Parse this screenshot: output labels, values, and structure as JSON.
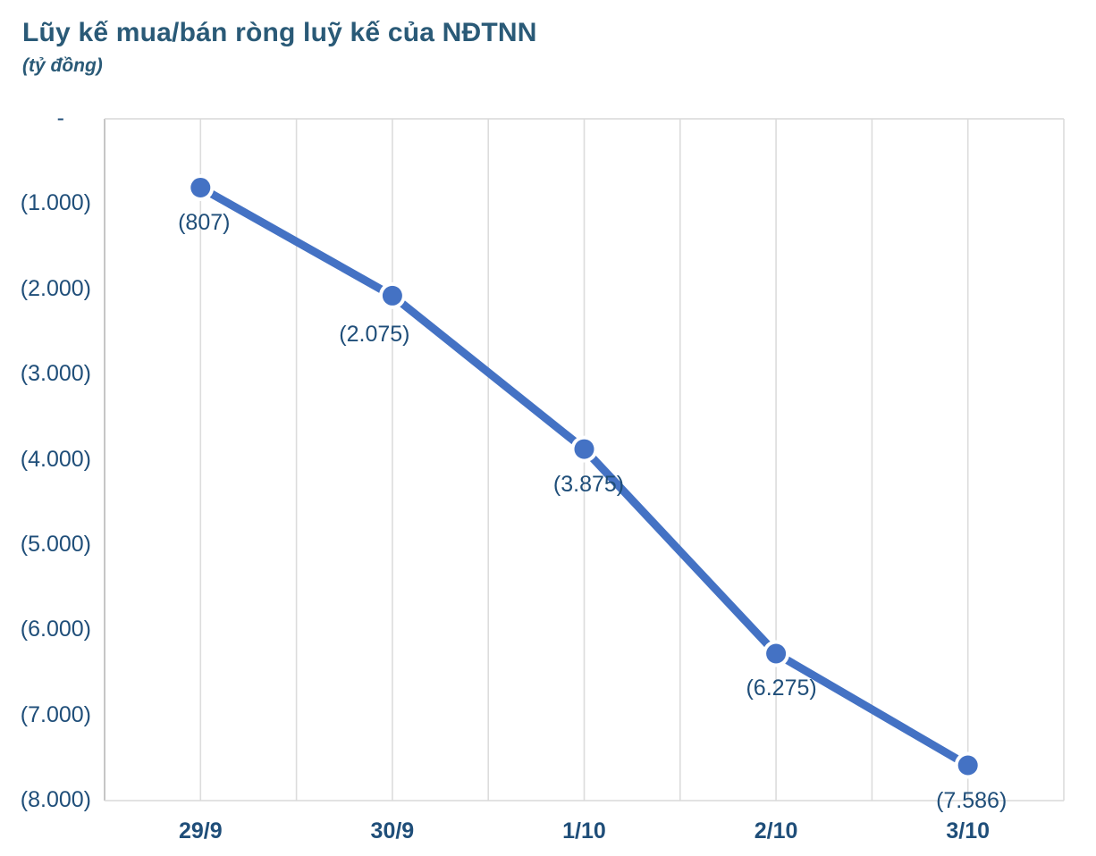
{
  "chart": {
    "title": "Lũy kế mua/bán ròng luỹ kế của NĐTNN",
    "subtitle": "(tỷ đồng)"
  },
  "chart_data": {
    "type": "line",
    "title": "Lũy kế mua/bán ròng luỹ kế của NĐTNN",
    "unit_label": "(tỷ đồng)",
    "categories": [
      "29/9",
      "30/9",
      "1/10",
      "2/10",
      "3/10"
    ],
    "values": [
      -807,
      -2075,
      -3875,
      -6275,
      -7586
    ],
    "point_labels": [
      "(807)",
      "(2.075)",
      "(3.875)",
      "(6.275)",
      "(7.586)"
    ],
    "y_ticks": [
      {
        "value": 0,
        "label": "-"
      },
      {
        "value": -1000,
        "label": "(1.000)"
      },
      {
        "value": -2000,
        "label": "(2.000)"
      },
      {
        "value": -3000,
        "label": "(3.000)"
      },
      {
        "value": -4000,
        "label": "(4.000)"
      },
      {
        "value": -5000,
        "label": "(5.000)"
      },
      {
        "value": -6000,
        "label": "(6.000)"
      },
      {
        "value": -7000,
        "label": "(7.000)"
      },
      {
        "value": -8000,
        "label": "(8.000)"
      }
    ],
    "ylim": [
      -8000,
      0
    ],
    "grid": "vertical-only",
    "legend": "none",
    "colors": {
      "line": "#4472C4",
      "marker": "#4472C4",
      "marker_ring": "#FFFFFF",
      "title_text": "#2A5A77",
      "label_text": "#1F4E79",
      "gridline": "#DCDCDC",
      "axis_line": "#C6C6C6",
      "border": "#D9D9D9"
    }
  }
}
